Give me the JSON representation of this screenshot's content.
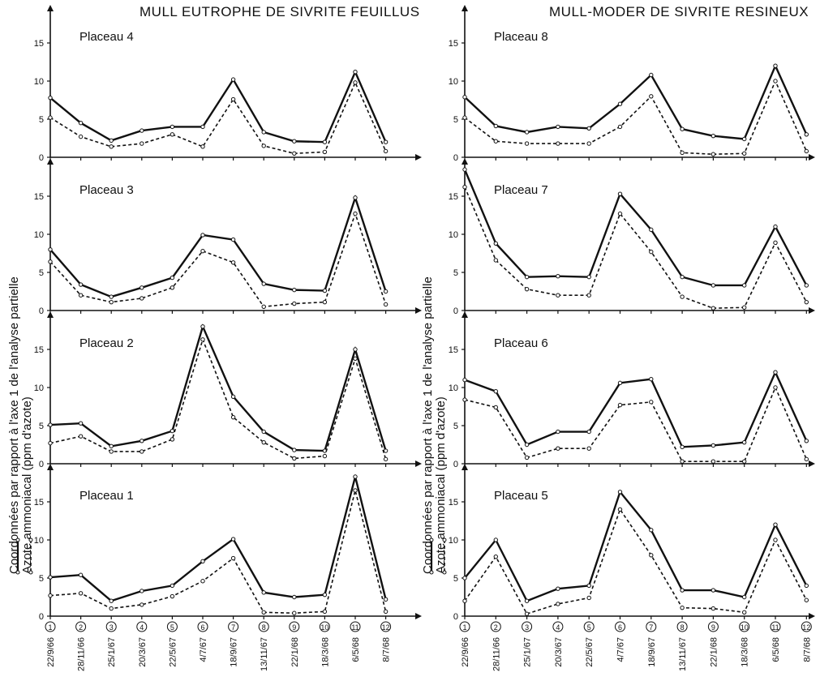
{
  "figure": {
    "left_title": "MULL EUTROPHE DE SIVRITE FEUILLUS",
    "right_title": "MULL-MODER DE SIVRITE RESINEUX",
    "ylabel_line1": "Coordonnées par rapport à l'axe 1 de l'analyse partielle",
    "ylabel_line2": "Azote ammoniacal (ppm d'azote)"
  },
  "chart_data": [
    {
      "type": "line",
      "title": "Placeau 4",
      "yticks": [
        0,
        5,
        10,
        15
      ],
      "ylim": [
        0,
        19
      ],
      "categories": [
        "1",
        "2",
        "3",
        "4",
        "5",
        "6",
        "7",
        "8",
        "9",
        "10",
        "11",
        "12"
      ],
      "series": [
        {
          "style": "solid",
          "values": [
            7.8,
            4.5,
            2.2,
            3.5,
            4.0,
            4.0,
            10.2,
            3.3,
            2.1,
            2.0,
            11.2,
            2.0
          ]
        },
        {
          "style": "dashed",
          "values": [
            5.2,
            2.7,
            1.4,
            1.8,
            3.0,
            1.4,
            7.6,
            1.5,
            0.5,
            0.7,
            9.8,
            0.8
          ]
        }
      ]
    },
    {
      "type": "line",
      "title": "Placeau 3",
      "yticks": [
        0,
        5,
        10,
        15
      ],
      "ylim": [
        0,
        19
      ],
      "categories": [
        "1",
        "2",
        "3",
        "4",
        "5",
        "6",
        "7",
        "8",
        "9",
        "10",
        "11",
        "12"
      ],
      "series": [
        {
          "style": "solid",
          "values": [
            8.0,
            3.4,
            1.8,
            3.0,
            4.3,
            9.9,
            9.3,
            3.5,
            2.7,
            2.6,
            14.8,
            2.5
          ]
        },
        {
          "style": "dashed",
          "values": [
            6.4,
            2.0,
            1.1,
            1.6,
            3.0,
            7.8,
            6.3,
            0.5,
            0.9,
            1.1,
            12.7,
            0.8
          ]
        }
      ]
    },
    {
      "type": "line",
      "title": "Placeau 2",
      "yticks": [
        0,
        5,
        10,
        15
      ],
      "ylim": [
        0,
        19
      ],
      "categories": [
        "1",
        "2",
        "3",
        "4",
        "5",
        "6",
        "7",
        "8",
        "9",
        "10",
        "11",
        "12"
      ],
      "series": [
        {
          "style": "solid",
          "values": [
            5.1,
            5.3,
            2.3,
            3.0,
            4.3,
            18.0,
            8.8,
            4.2,
            1.8,
            1.7,
            15.0,
            1.7
          ]
        },
        {
          "style": "dashed",
          "values": [
            2.7,
            3.6,
            1.6,
            1.6,
            3.2,
            16.3,
            6.1,
            2.8,
            0.7,
            1.0,
            13.8,
            0.6
          ]
        }
      ]
    },
    {
      "type": "line",
      "title": "Placeau 1",
      "yticks": [
        0,
        5,
        10,
        15
      ],
      "ylim": [
        0,
        19
      ],
      "categories": [
        "1",
        "2",
        "3",
        "4",
        "5",
        "6",
        "7",
        "8",
        "9",
        "10",
        "11",
        "12"
      ],
      "series": [
        {
          "style": "solid",
          "values": [
            5.1,
            5.4,
            2.0,
            3.3,
            4.0,
            7.2,
            10.1,
            3.1,
            2.5,
            2.8,
            18.3,
            2.2
          ]
        },
        {
          "style": "dashed",
          "values": [
            2.7,
            3.0,
            1.0,
            1.5,
            2.6,
            4.6,
            7.6,
            0.5,
            0.4,
            0.6,
            16.5,
            0.6
          ]
        }
      ]
    },
    {
      "type": "line",
      "title": "Placeau 8",
      "yticks": [
        0,
        5,
        10,
        15
      ],
      "ylim": [
        0,
        19
      ],
      "categories": [
        "1",
        "2",
        "3",
        "4",
        "5",
        "6",
        "7",
        "8",
        "9",
        "10",
        "11",
        "12"
      ],
      "series": [
        {
          "style": "solid",
          "values": [
            7.9,
            4.1,
            3.3,
            4.0,
            3.8,
            7.0,
            10.8,
            3.7,
            2.8,
            2.4,
            12.0,
            3.0
          ]
        },
        {
          "style": "dashed",
          "values": [
            5.2,
            2.1,
            1.8,
            1.8,
            1.8,
            4.0,
            8.0,
            0.6,
            0.4,
            0.5,
            10.0,
            0.8
          ]
        }
      ]
    },
    {
      "type": "line",
      "title": "Placeau 7",
      "yticks": [
        0,
        5,
        10,
        15
      ],
      "ylim": [
        0,
        19
      ],
      "categories": [
        "1",
        "2",
        "3",
        "4",
        "5",
        "6",
        "7",
        "8",
        "9",
        "10",
        "11",
        "12"
      ],
      "series": [
        {
          "style": "solid",
          "values": [
            18.5,
            8.8,
            4.4,
            4.5,
            4.4,
            15.3,
            10.6,
            4.4,
            3.3,
            3.3,
            11.0,
            3.3
          ]
        },
        {
          "style": "dashed",
          "values": [
            16.2,
            6.6,
            2.8,
            2.0,
            2.0,
            12.7,
            7.7,
            1.8,
            0.3,
            0.4,
            8.9,
            1.1
          ]
        }
      ]
    },
    {
      "type": "line",
      "title": "Placeau 6",
      "yticks": [
        0,
        5,
        10,
        15
      ],
      "ylim": [
        0,
        19
      ],
      "categories": [
        "1",
        "2",
        "3",
        "4",
        "5",
        "6",
        "7",
        "8",
        "9",
        "10",
        "11",
        "12"
      ],
      "series": [
        {
          "style": "solid",
          "values": [
            11.0,
            9.5,
            2.5,
            4.2,
            4.2,
            10.6,
            11.1,
            2.2,
            2.4,
            2.8,
            12.0,
            3.0
          ]
        },
        {
          "style": "dashed",
          "values": [
            8.4,
            7.4,
            0.8,
            2.0,
            2.0,
            7.7,
            8.1,
            0.3,
            0.3,
            0.3,
            10.0,
            0.6
          ]
        }
      ]
    },
    {
      "type": "line",
      "title": "Placeau 5",
      "yticks": [
        0,
        5,
        10,
        15
      ],
      "ylim": [
        0,
        19
      ],
      "categories": [
        "1",
        "2",
        "3",
        "4",
        "5",
        "6",
        "7",
        "8",
        "9",
        "10",
        "11",
        "12"
      ],
      "series": [
        {
          "style": "solid",
          "values": [
            5.0,
            10.0,
            2.0,
            3.6,
            4.0,
            16.3,
            11.3,
            3.4,
            3.4,
            2.5,
            12.0,
            4.0
          ]
        },
        {
          "style": "dashed",
          "values": [
            2.0,
            7.8,
            0.3,
            1.6,
            2.4,
            14.0,
            8.0,
            1.1,
            1.0,
            0.5,
            10.0,
            2.1
          ]
        }
      ]
    }
  ],
  "x_axis": {
    "numbers": [
      "1",
      "2",
      "3",
      "4",
      "5",
      "6",
      "7",
      "8",
      "9",
      "10",
      "11",
      "12"
    ],
    "dates": [
      "22/9/66",
      "28/11/66",
      "25/1/67",
      "20/3/67",
      "22/5/67",
      "4/7/67",
      "18/9/67",
      "13/11/67",
      "22/1/68",
      "18/3/68",
      "6/5/68",
      "8/7/68"
    ]
  }
}
